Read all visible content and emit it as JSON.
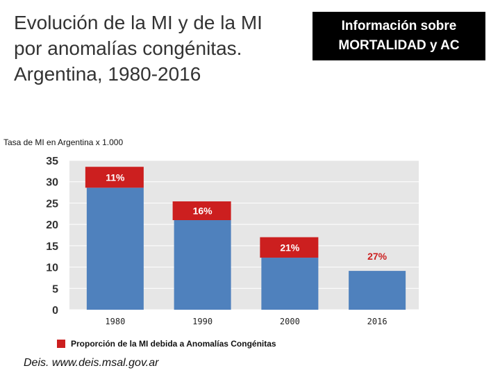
{
  "slide": {
    "title": "Evolución de la MI y de la MI\npor anomalías congénitas.\nArgentina, 1980-2016",
    "info_line1": "Información sobre",
    "info_line2": "MORTALIDAD y AC",
    "source": "Deis. www.deis.msal.gov.ar"
  },
  "chart_data": {
    "type": "bar",
    "ylabel": "Tasa de MI en Argentina x 1.000",
    "ylim": [
      0,
      35
    ],
    "yticks": [
      0,
      5,
      10,
      15,
      20,
      25,
      30,
      35
    ],
    "categories": [
      "1980",
      "1990",
      "2000",
      "2016"
    ],
    "series": [
      {
        "name": "",
        "color": "#4f81bd",
        "values": [
          28.6,
          21.0,
          12.2,
          9.1
        ]
      },
      {
        "name": "Proporción de la MI debida a Anomalías Congénitas",
        "color": "#cc1f1f",
        "values": [
          4.9,
          4.4,
          4.8,
          0
        ]
      }
    ],
    "data_labels": [
      "11%",
      "16%",
      "21%",
      "27%"
    ],
    "grid": true,
    "legend": "bottom"
  }
}
